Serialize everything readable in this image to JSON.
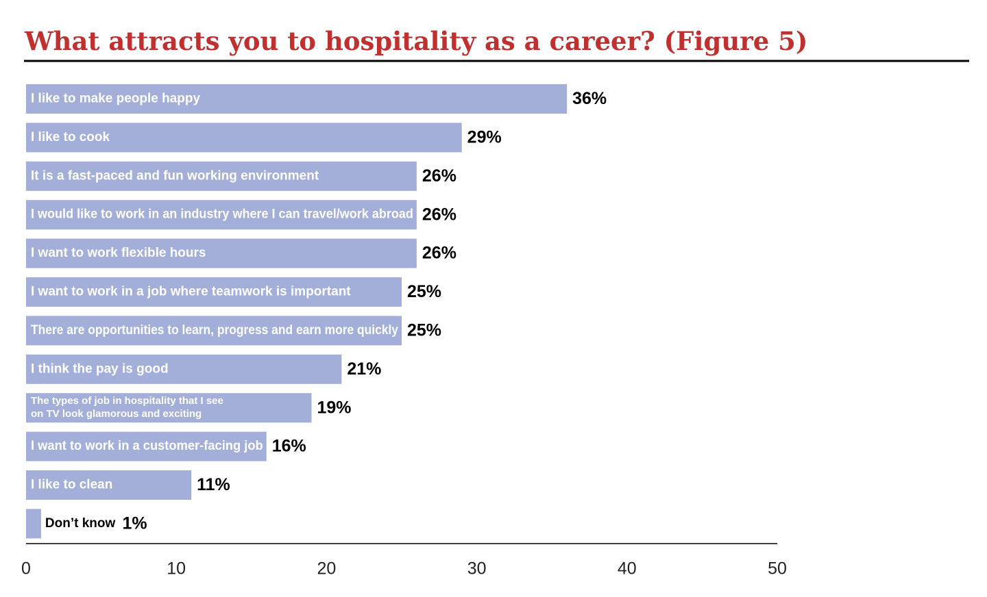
{
  "chart_data": {
    "type": "barh",
    "title": "What attracts you to hospitality as a career? (Figure 5)",
    "categories": [
      "I like to make people happy",
      "I like to cook",
      "It is a fast-paced and fun working environment",
      "I would like to work in an industry where I can travel/work abroad",
      "I want to work flexible hours",
      "I want to work in a job where teamwork is important",
      "There are opportunities to learn, progress and earn more quickly",
      "I think the pay is good",
      "The types of job in hospitality that I see\non TV look glamorous and exciting",
      "I want to work in a customer-facing job",
      "I like to clean",
      "Don’t know"
    ],
    "values": [
      36,
      29,
      26,
      26,
      26,
      25,
      25,
      21,
      19,
      16,
      11,
      1
    ],
    "value_labels": [
      "36%",
      "29%",
      "26%",
      "26%",
      "26%",
      "25%",
      "25%",
      "21%",
      "19%",
      "16%",
      "11%",
      "1%"
    ],
    "color": "#a3afd8",
    "xlim": [
      0,
      50
    ],
    "xticks": [
      0,
      10,
      20,
      30,
      40,
      50
    ],
    "grid": false
  }
}
